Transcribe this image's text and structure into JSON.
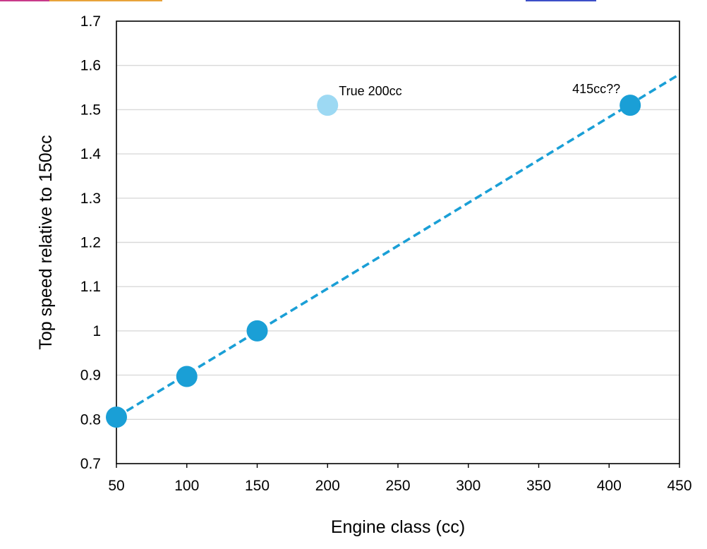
{
  "chart_data": {
    "type": "scatter",
    "title": "",
    "xlabel": "Engine class (cc)",
    "ylabel": "Top speed relative to 150cc",
    "xlim": [
      50,
      450
    ],
    "ylim": [
      0.7,
      1.7
    ],
    "x_ticks": [
      50,
      100,
      150,
      200,
      250,
      300,
      350,
      400,
      450
    ],
    "x_tick_labels": [
      "50",
      "100",
      "150",
      "200",
      "250",
      "300",
      "350",
      "400",
      "450"
    ],
    "y_ticks": [
      0.7,
      0.8,
      0.9,
      1.0,
      1.1,
      1.2,
      1.3,
      1.4,
      1.5,
      1.6,
      1.7
    ],
    "y_tick_labels": [
      "0.7",
      "0.8",
      "0.9",
      "1",
      "1.1",
      "1.2",
      "1.3",
      "1.4",
      "1.5",
      "1.6",
      "1.7"
    ],
    "grid": "horizontal",
    "legend": "none",
    "series": [
      {
        "color": "#1a9fd6",
        "points": [
          {
            "x": 50,
            "y": 0.805
          },
          {
            "x": 100,
            "y": 0.897
          },
          {
            "x": 150,
            "y": 1.0
          },
          {
            "x": 415,
            "y": 1.51
          }
        ]
      },
      {
        "color": "#9dd9f3",
        "points": [
          {
            "x": 200,
            "y": 1.51
          }
        ]
      }
    ],
    "trendline": {
      "style": "dashed",
      "color": "#1a9fd6",
      "from": {
        "x": 50,
        "y": 0.805
      },
      "to": {
        "x": 450,
        "y": 1.58
      }
    },
    "annotations": [
      {
        "text": "True 200cc",
        "x": 200,
        "y": 1.51,
        "anchor": "right"
      },
      {
        "text": "415cc??",
        "x": 415,
        "y": 1.51,
        "anchor": "upper-left"
      }
    ]
  },
  "colors": {
    "gridline": "#d9d9d9",
    "frame": "#000000",
    "top_strip": [
      "#c93a8a",
      "#e8a33a",
      "#3c4fc8"
    ]
  }
}
